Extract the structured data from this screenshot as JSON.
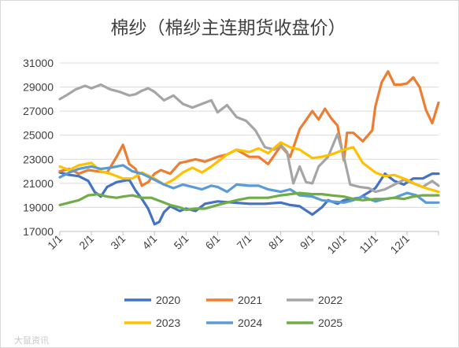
{
  "watermark": "大鼠资讯",
  "chart_data": {
    "type": "line",
    "title": "棉纱（棉纱主连期货收盘价）",
    "xlabel": "",
    "ylabel": "",
    "ylim": [
      17000,
      31000
    ],
    "yticks": [
      17000,
      19000,
      21000,
      23000,
      25000,
      27000,
      29000,
      31000
    ],
    "ytick_labels": [
      "17000",
      "19000",
      "21000",
      "23000",
      "25000",
      "27000",
      "29000",
      "31000"
    ],
    "xlim": [
      0,
      12
    ],
    "xticks": [
      0,
      1,
      2,
      3,
      4,
      5,
      6,
      7,
      8,
      9,
      10,
      11
    ],
    "xtick_labels": [
      "1/1",
      "2/1",
      "3/1",
      "4/1",
      "5/1",
      "6/1",
      "7/1",
      "8/1",
      "9/1",
      "10/1",
      "11/1",
      "12/1"
    ],
    "grid": "horizontal",
    "legend_position": "bottom",
    "series": [
      {
        "name": "2020",
        "color": "#4472C4",
        "x": [
          0,
          0.3,
          0.6,
          0.9,
          1.1,
          1.3,
          1.5,
          1.8,
          2.0,
          2.2,
          2.4,
          2.6,
          2.8,
          3.0,
          3.15,
          3.3,
          3.5,
          3.8,
          4.0,
          4.3,
          4.6,
          5.0,
          5.5,
          6.0,
          6.5,
          7.0,
          7.3,
          7.6,
          8.0,
          8.3,
          8.5,
          8.8,
          9.0,
          9.5,
          10.0,
          10.3,
          10.6,
          10.9,
          11.2,
          11.5,
          11.8,
          12.0
        ],
        "y": [
          21900,
          21700,
          21600,
          21200,
          20300,
          19900,
          20700,
          21100,
          21200,
          21300,
          20400,
          19700,
          18900,
          17600,
          17800,
          18600,
          19100,
          18700,
          18900,
          18700,
          19300,
          19500,
          19400,
          19300,
          19300,
          19400,
          19200,
          19100,
          18400,
          19000,
          19600,
          19300,
          19600,
          19800,
          20600,
          21800,
          21200,
          20900,
          21400,
          21400,
          21800,
          21800
        ]
      },
      {
        "name": "2021",
        "color": "#ED7D31",
        "x": [
          0,
          0.3,
          0.6,
          0.9,
          1.2,
          1.5,
          1.8,
          2.0,
          2.2,
          2.4,
          2.6,
          2.8,
          3.0,
          3.2,
          3.5,
          3.8,
          4.0,
          4.3,
          4.6,
          5.0,
          5.3,
          5.6,
          6.0,
          6.3,
          6.6,
          7.0,
          7.3,
          7.6,
          8.0,
          8.2,
          8.4,
          8.6,
          8.8,
          9.0,
          9.1,
          9.3,
          9.6,
          9.9,
          10.0,
          10.2,
          10.4,
          10.6,
          10.8,
          11.0,
          11.2,
          11.4,
          11.6,
          11.8,
          12.0
        ],
        "y": [
          22000,
          22200,
          21800,
          22100,
          22000,
          21900,
          23200,
          24200,
          22600,
          22200,
          20800,
          21100,
          21800,
          22100,
          21800,
          22700,
          22800,
          23000,
          22800,
          23200,
          23400,
          23800,
          23200,
          23200,
          22600,
          24100,
          23200,
          25500,
          27000,
          26300,
          27200,
          26400,
          25800,
          22900,
          25200,
          25200,
          24500,
          25400,
          27400,
          29400,
          30300,
          29200,
          29200,
          29300,
          29800,
          29000,
          27100,
          26000,
          27700
        ]
      },
      {
        "name": "2022",
        "color": "#A5A5A5",
        "x": [
          0,
          0.2,
          0.5,
          0.8,
          1.0,
          1.3,
          1.6,
          1.9,
          2.2,
          2.4,
          2.6,
          2.8,
          3.0,
          3.3,
          3.6,
          3.9,
          4.2,
          4.5,
          4.8,
          5.0,
          5.3,
          5.6,
          5.9,
          6.2,
          6.5,
          6.8,
          7.0,
          7.2,
          7.4,
          7.6,
          7.8,
          8.0,
          8.2,
          8.5,
          8.8,
          9.0,
          9.2,
          9.5,
          9.8,
          10.0,
          10.3,
          10.6,
          10.9,
          11.2,
          11.5,
          11.8,
          12.0
        ],
        "y": [
          28000,
          28300,
          28800,
          29100,
          28900,
          29200,
          28800,
          28600,
          28300,
          28400,
          28700,
          28900,
          28600,
          27900,
          28300,
          27600,
          27300,
          27600,
          27900,
          26900,
          27500,
          26500,
          26200,
          25400,
          24000,
          23800,
          24200,
          23600,
          21000,
          22400,
          21100,
          21000,
          22400,
          23200,
          25100,
          23200,
          20900,
          20700,
          20600,
          20300,
          20500,
          20900,
          21300,
          21000,
          20700,
          21200,
          20800
        ]
      },
      {
        "name": "2023",
        "color": "#FFC000",
        "x": [
          0,
          0.3,
          0.6,
          1.0,
          1.3,
          1.6,
          2.0,
          2.3,
          2.6,
          3.0,
          3.3,
          3.6,
          3.9,
          4.2,
          4.5,
          4.8,
          5.0,
          5.3,
          5.6,
          6.0,
          6.3,
          6.6,
          7.0,
          7.3,
          7.6,
          8.0,
          8.3,
          8.6,
          9.0,
          9.3,
          9.6,
          10.0,
          10.3,
          10.6,
          11.0,
          11.3,
          11.6,
          12.0
        ],
        "y": [
          22400,
          22100,
          22500,
          22700,
          22000,
          21800,
          21400,
          21400,
          21900,
          21400,
          20900,
          21300,
          21900,
          22300,
          21900,
          22400,
          22800,
          23400,
          23800,
          23600,
          23900,
          23500,
          24400,
          24000,
          23800,
          23100,
          23200,
          23400,
          23800,
          24000,
          22700,
          21900,
          21600,
          21700,
          21300,
          20900,
          20600,
          20300
        ]
      },
      {
        "name": "2024",
        "color": "#5B9BD5",
        "x": [
          0,
          0.3,
          0.6,
          1.0,
          1.3,
          1.6,
          2.0,
          2.3,
          2.6,
          3.0,
          3.3,
          3.6,
          3.9,
          4.2,
          4.5,
          4.8,
          5.0,
          5.3,
          5.6,
          6.0,
          6.3,
          6.6,
          7.0,
          7.3,
          7.6,
          8.0,
          8.3,
          8.6,
          9.0,
          9.3,
          9.6,
          10.0,
          10.3,
          10.6,
          11.0,
          11.3,
          11.6,
          12.0
        ],
        "y": [
          21500,
          21900,
          22200,
          22400,
          22200,
          22300,
          22500,
          22000,
          21800,
          21300,
          20900,
          20600,
          20900,
          20700,
          20500,
          20800,
          20700,
          20300,
          20900,
          20800,
          20800,
          20500,
          20300,
          20500,
          20000,
          19900,
          19600,
          19500,
          19400,
          19600,
          19900,
          19500,
          19700,
          19800,
          20200,
          20000,
          19400,
          19400
        ]
      },
      {
        "name": "2025",
        "color": "#70AD47",
        "x": [
          0,
          0.3,
          0.6,
          0.9,
          1.2,
          1.5,
          1.8,
          2.0,
          2.3,
          2.6,
          2.9,
          3.2,
          3.5,
          3.8,
          4.0,
          4.3,
          4.6,
          5.0,
          5.3,
          5.6,
          6.0,
          6.3,
          6.6,
          7.0,
          7.3,
          7.6,
          8.0,
          8.3,
          8.6,
          9.0,
          9.3,
          9.6,
          10.0,
          10.3,
          10.6,
          10.9,
          11.2,
          11.5,
          11.8,
          12.0
        ],
        "y": [
          19200,
          19400,
          19600,
          20000,
          20100,
          19900,
          19800,
          19900,
          20000,
          19800,
          19800,
          19500,
          19200,
          19000,
          18800,
          18900,
          18900,
          19200,
          19400,
          19600,
          19800,
          19800,
          19800,
          20000,
          20100,
          20200,
          20100,
          20100,
          20000,
          19900,
          19700,
          19600,
          19700,
          19700,
          19800,
          19700,
          19900,
          20000,
          20000,
          20000
        ]
      }
    ]
  }
}
